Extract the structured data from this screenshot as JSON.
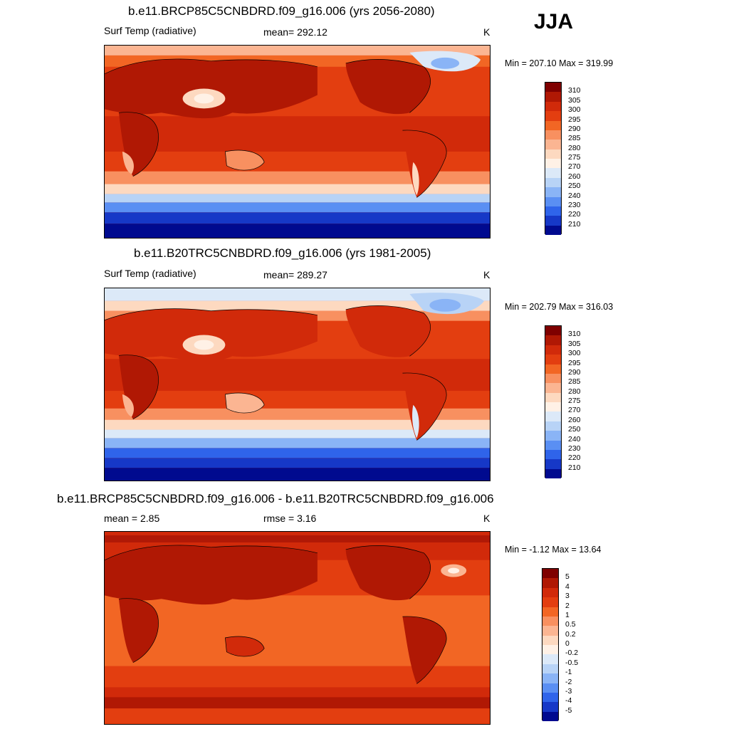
{
  "season": "JJA",
  "panels": [
    {
      "title": "b.e11.BRCP85C5CNBDRD.f09_g16.006 (yrs 2056-2080)",
      "left_label": "Surf Temp (radiative)",
      "center_label": "mean= 292.12",
      "units": "K",
      "minmax": "Min = 207.10 Max = 319.99",
      "colorbar_ticks": [
        "310",
        "305",
        "300",
        "295",
        "290",
        "285",
        "280",
        "275",
        "270",
        "260",
        "250",
        "240",
        "230",
        "220",
        "210"
      ],
      "colorbar_colors": [
        "#7f0000",
        "#b01804",
        "#d12a0a",
        "#e33e10",
        "#f26624",
        "#f89060",
        "#fbb592",
        "#fdd9c0",
        "#fff1e6",
        "#dce9f8",
        "#b8d3f6",
        "#8ab4f6",
        "#5a8ff3",
        "#2f64ea",
        "#1638c7",
        "#000a8f"
      ]
    },
    {
      "title": "b.e11.B20TRC5CNBDRD.f09_g16.006 (yrs 1981-2005)",
      "left_label": "Surf Temp (radiative)",
      "center_label": "mean= 289.27",
      "units": "K",
      "minmax": "Min = 202.79 Max = 316.03",
      "colorbar_ticks": [
        "310",
        "305",
        "300",
        "295",
        "290",
        "285",
        "280",
        "275",
        "270",
        "260",
        "250",
        "240",
        "230",
        "220",
        "210"
      ],
      "colorbar_colors": [
        "#7f0000",
        "#b01804",
        "#d12a0a",
        "#e33e10",
        "#f26624",
        "#f89060",
        "#fbb592",
        "#fdd9c0",
        "#fff1e6",
        "#dce9f8",
        "#b8d3f6",
        "#8ab4f6",
        "#5a8ff3",
        "#2f64ea",
        "#1638c7",
        "#000a8f"
      ]
    },
    {
      "title": "b.e11.BRCP85C5CNBDRD.f09_g16.006 - b.e11.B20TRC5CNBDRD.f09_g16.006",
      "left_label": "mean =   2.85",
      "center_label": "rmse =   3.16",
      "units": "K",
      "minmax": "Min =  -1.12 Max =  13.64",
      "colorbar_ticks": [
        "5",
        "4",
        "3",
        "2",
        "1",
        "0.5",
        "0.2",
        "0",
        "-0.2",
        "-0.5",
        "-1",
        "-2",
        "-3",
        "-4",
        "-5"
      ],
      "colorbar_colors": [
        "#7f0000",
        "#b01804",
        "#d12a0a",
        "#e33e10",
        "#f26624",
        "#f89060",
        "#fbb592",
        "#fdd9c0",
        "#fff1e6",
        "#dce9f8",
        "#b8d3f6",
        "#8ab4f6",
        "#5a8ff3",
        "#2f64ea",
        "#1638c7",
        "#000a8f"
      ]
    }
  ]
}
